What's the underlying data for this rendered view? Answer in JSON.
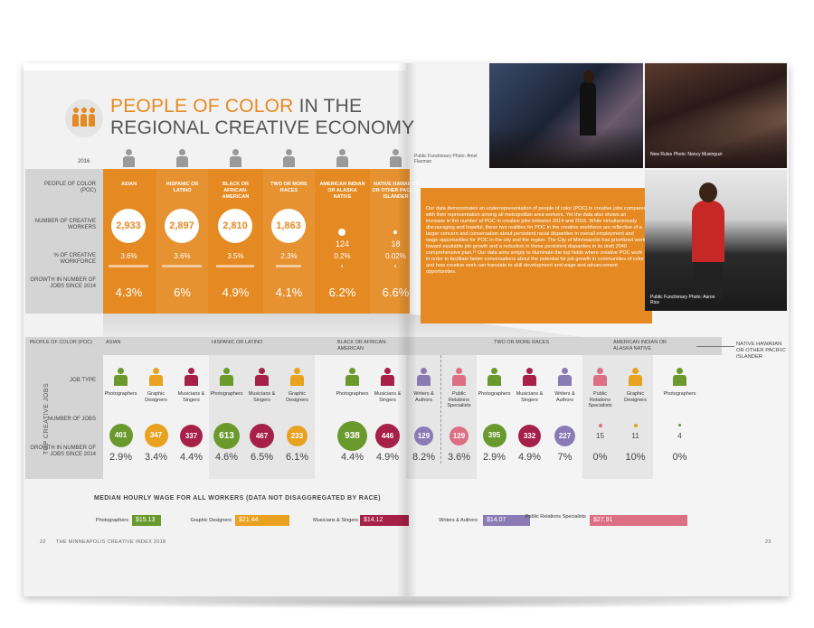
{
  "title": {
    "highlight": "PEOPLE OF COLOR",
    "rest1": " IN THE",
    "line2": "REGIONAL CREATIVE ECONOMY"
  },
  "year": "2016",
  "row_labels": {
    "poc": "PEOPLE OF COLOR (POC)",
    "workers": "NUMBER OF CREATIVE WORKERS",
    "pct": "% OF CREATIVE WORKFORCE",
    "growth": "GROWTH IN NUMBER OF JOBS SINCE 2014"
  },
  "groups": [
    {
      "name": "ASIAN",
      "workers": "2,933",
      "pct": "3.6%",
      "growth": "4.3%",
      "pct_value": 3.6
    },
    {
      "name": "HISPANIC OR LATINO",
      "workers": "2,897",
      "pct": "3.6%",
      "growth": "6%",
      "pct_value": 3.6
    },
    {
      "name": "BLACK OR AFRICAN-AMERICAN",
      "workers": "2,810",
      "pct": "3.5%",
      "growth": "4.9%",
      "pct_value": 3.5
    },
    {
      "name": "TWO OR MORE RACES",
      "workers": "1,863",
      "pct": "2.3%",
      "growth": "4.1%",
      "pct_value": 2.3
    },
    {
      "name": "AMERICAN INDIAN OR ALASKA NATIVE",
      "workers": "124",
      "pct": "0.2%",
      "growth": "6.2%",
      "pct_value": 0.2
    },
    {
      "name": "NATIVE HAWAIIAN OR OTHER PACIFIC ISLANDER",
      "workers": "18",
      "pct": "0.02%",
      "growth": "6.6%",
      "pct_value": 0.02
    }
  ],
  "right_text": "Our data demonstrates an underrepresentation of people of color (POC) in creative jobs compared with their representation among all metropolitan area workers. Yet the data also shows an increase in the number of POC in creative jobs between 2014 and 2016. While simultaneously discouraging and hopeful, these two realities for POC in the creative workforce are reflective of a larger concern and conversation about persistent racial disparities in overall employment and wage opportunities for POC in the city and the region. The City of Minneapolis has prioritized work toward equitable job growth and a reduction in these persistent disparities in its draft 2040 comprehensive plan.¹¹ Our data aims simply to illuminate the top fields where creative POC work in order to facilitate better conversations about the potential for job growth in communities of color and how creative work can translate to skill development and wage and advancement opportunities.",
  "captions": {
    "photo1": "Public Functionary Photo: Amel Flaxman",
    "photo2": "New Rules Photo: Nancy Musinguzi",
    "photo3": "Public Functionary Photo: Aaron Rice"
  },
  "jobs_header": {
    "poc_label": "PEOPLE OF COLOR (POC)",
    "job_type": "JOB TYPE",
    "num_jobs": "NUMBER OF JOBS",
    "growth": "GROWTH IN NUMBER OF JOBS SINCE 2014",
    "vertical": "TOP CREATIVE JOBS",
    "g_asian": "ASIAN",
    "g_hispanic": "HISPANIC OR LATINO",
    "g_black": "BLACK OR AFRICAN-AMERICAN",
    "g_two": "TWO OR MORE RACES",
    "g_amind": "AMERICAN INDIAN OR ALASKA NATIVE",
    "g_native": "NATIVE HAWAIIAN OR OTHER PACIFIC ISLANDER"
  },
  "jobs": [
    {
      "type": "Photographers",
      "count": "401",
      "growth": "2.9%",
      "color": "#6a9a2e",
      "n": 401
    },
    {
      "type": "Graphic Designers",
      "count": "347",
      "growth": "3.4%",
      "color": "#e8a21f",
      "n": 347
    },
    {
      "type": "Musicians & Singers",
      "count": "337",
      "growth": "4.4%",
      "color": "#a6204a",
      "n": 337
    },
    {
      "type": "Photographers",
      "count": "613",
      "growth": "4.6%",
      "color": "#6a9a2e",
      "n": 613
    },
    {
      "type": "Musicians & Singers",
      "count": "467",
      "growth": "6.5%",
      "color": "#a6204a",
      "n": 467
    },
    {
      "type": "Graphic Designers",
      "count": "233",
      "growth": "6.1%",
      "color": "#e8a21f",
      "n": 233
    },
    {
      "type": "Photographers",
      "count": "938",
      "growth": "4.4%",
      "color": "#6a9a2e",
      "n": 938
    },
    {
      "type": "Musicians & Singers",
      "count": "446",
      "growth": "4.9%",
      "color": "#a6204a",
      "n": 446
    },
    {
      "type": "Writers & Authors",
      "count": "129",
      "growth": "8.2%",
      "color": "#8a7bb5",
      "n": 129
    },
    {
      "type": "Public Relations Specialists",
      "count": "129",
      "growth": "3.6%",
      "color": "#dd6f84",
      "n": 129
    },
    {
      "type": "Photographers",
      "count": "395",
      "growth": "2.9%",
      "color": "#6a9a2e",
      "n": 395
    },
    {
      "type": "Musicians & Singers",
      "count": "332",
      "growth": "4.9%",
      "color": "#a6204a",
      "n": 332
    },
    {
      "type": "Writers & Authors",
      "count": "227",
      "growth": "7%",
      "color": "#8a7bb5",
      "n": 227
    },
    {
      "type": "Public Relations Specialists",
      "count": "15",
      "growth": "0%",
      "color": "#dd6f84",
      "n": 15
    },
    {
      "type": "Graphic Designers",
      "count": "11",
      "growth": "10%",
      "color": "#e8a21f",
      "n": 11
    },
    {
      "type": "Photographers",
      "count": "4",
      "growth": "0%",
      "color": "#6a9a2e",
      "n": 4
    }
  ],
  "wages": {
    "title": "MEDIAN HOURLY WAGE FOR ALL WORKERS (DATA NOT DISAGGREGATED BY RACE)",
    "items": [
      {
        "label": "Photographers",
        "value": "$15.13",
        "color": "#6a9a2e"
      },
      {
        "label": "Graphic Designers",
        "value": "$21.44",
        "color": "#e8a21f"
      },
      {
        "label": "Musicians & Singers",
        "value": "$14.12",
        "color": "#a6204a"
      },
      {
        "label": "Writers & Authors",
        "value": "$14.07",
        "color": "#8a7bb5"
      },
      {
        "label": "Public Relations Specialists",
        "value": "$27.91",
        "color": "#dd6f84"
      }
    ]
  },
  "footer": {
    "left_page": "22",
    "left_text": "THE MINNEAPOLIS CREATIVE INDEX 2018",
    "right_page": "23"
  }
}
